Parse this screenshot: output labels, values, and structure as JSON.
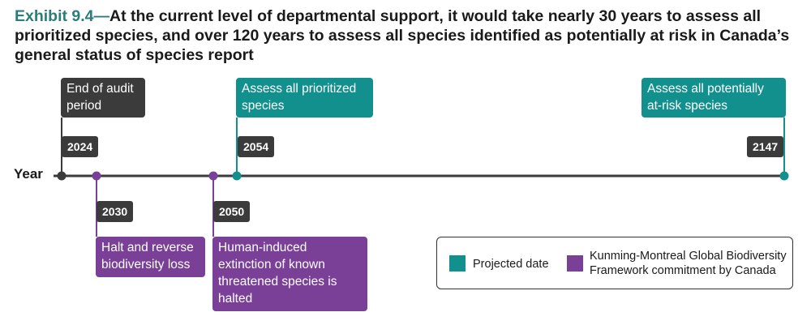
{
  "title": {
    "exhibit": "Exhibit 9.4",
    "dash": "—",
    "text": "At the current level of departmental support, it would take nearly 30 years to assess all prioritized species, and over 120 years to assess all species identified as potentially at risk in Canada’s general status of species report"
  },
  "axis": {
    "label": "Year"
  },
  "events": {
    "e2024": {
      "year": "2024",
      "label": "End of audit period"
    },
    "e2030": {
      "year": "2030",
      "label": "Halt and reverse biodiversity loss"
    },
    "e2050": {
      "year": "2050",
      "label": "Human-induced extinction of known threatened species is halted"
    },
    "e2054": {
      "year": "2054",
      "label": "Assess all prioritized species"
    },
    "e2147": {
      "year": "2147",
      "label": "Assess all potentially at-risk species"
    }
  },
  "legend": {
    "projected": "Projected date",
    "commitment": "Kunming-Montreal Global Biodiversity Framework commitment by Canada"
  },
  "colors": {
    "teal": "#11908e",
    "purple": "#7a3f96",
    "dark": "#3b3b3b"
  }
}
